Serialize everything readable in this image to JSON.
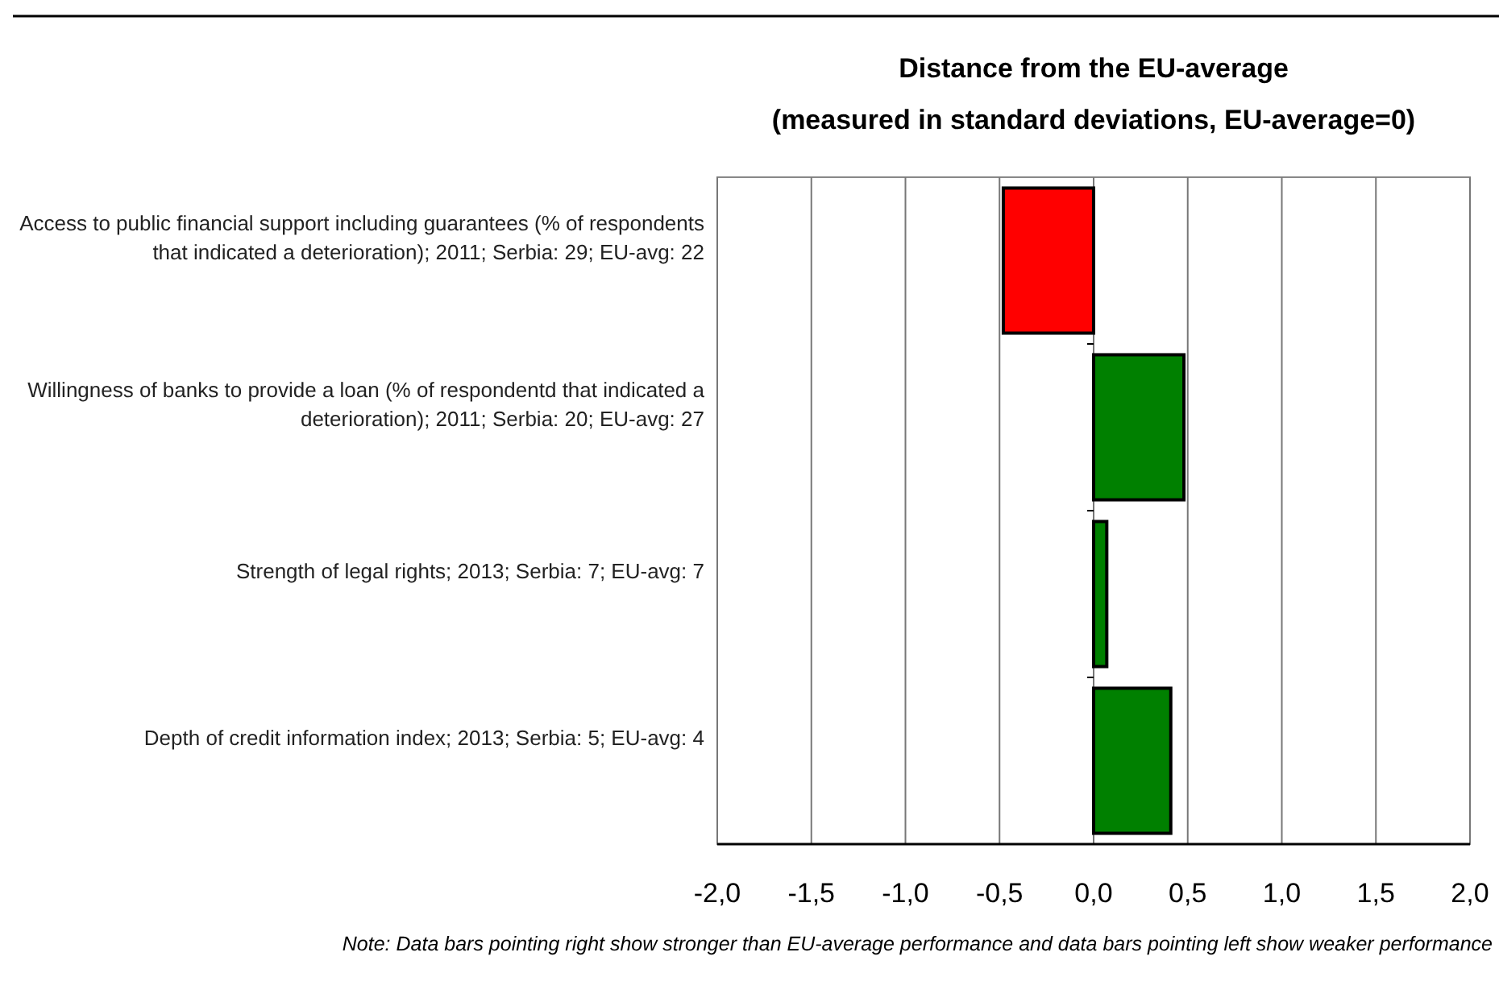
{
  "chart_data": {
    "type": "bar",
    "orientation": "horizontal",
    "title": "Distance from the EU-average",
    "subtitle": "(measured in standard deviations, EU-average=0)",
    "categories": [
      "Access to public financial support including guarantees (% of respondents that indicated a deterioration); 2011; Serbia: 29; EU-avg: 22",
      "Willingness of banks to provide a loan (% of respondentd that indicated a deterioration); 2011; Serbia: 20; EU-avg: 27",
      "Strength of legal rights; 2013; Serbia: 7; EU-avg: 7",
      "Depth of credit information index; 2013; Serbia: 5; EU-avg: 4"
    ],
    "values": [
      -0.48,
      0.48,
      0.07,
      0.41
    ],
    "colors": [
      "#ff0000",
      "#008000",
      "#008000",
      "#008000"
    ],
    "xlim": [
      -2,
      2
    ],
    "xticks": [
      {
        "value": -2,
        "label": "-2,0"
      },
      {
        "value": -1.5,
        "label": "-1,5"
      },
      {
        "value": -1,
        "label": "-1,0"
      },
      {
        "value": -0.5,
        "label": "-0,5"
      },
      {
        "value": 0,
        "label": "0,0"
      },
      {
        "value": 0.5,
        "label": "0,5"
      },
      {
        "value": 1,
        "label": "1,0"
      },
      {
        "value": 1.5,
        "label": "1,5"
      },
      {
        "value": 2,
        "label": "2,0"
      }
    ],
    "grid": "x",
    "annotations": [
      "Note: Data bars pointing right show stronger than EU-average performance and data bars pointing left show weaker performance"
    ]
  }
}
